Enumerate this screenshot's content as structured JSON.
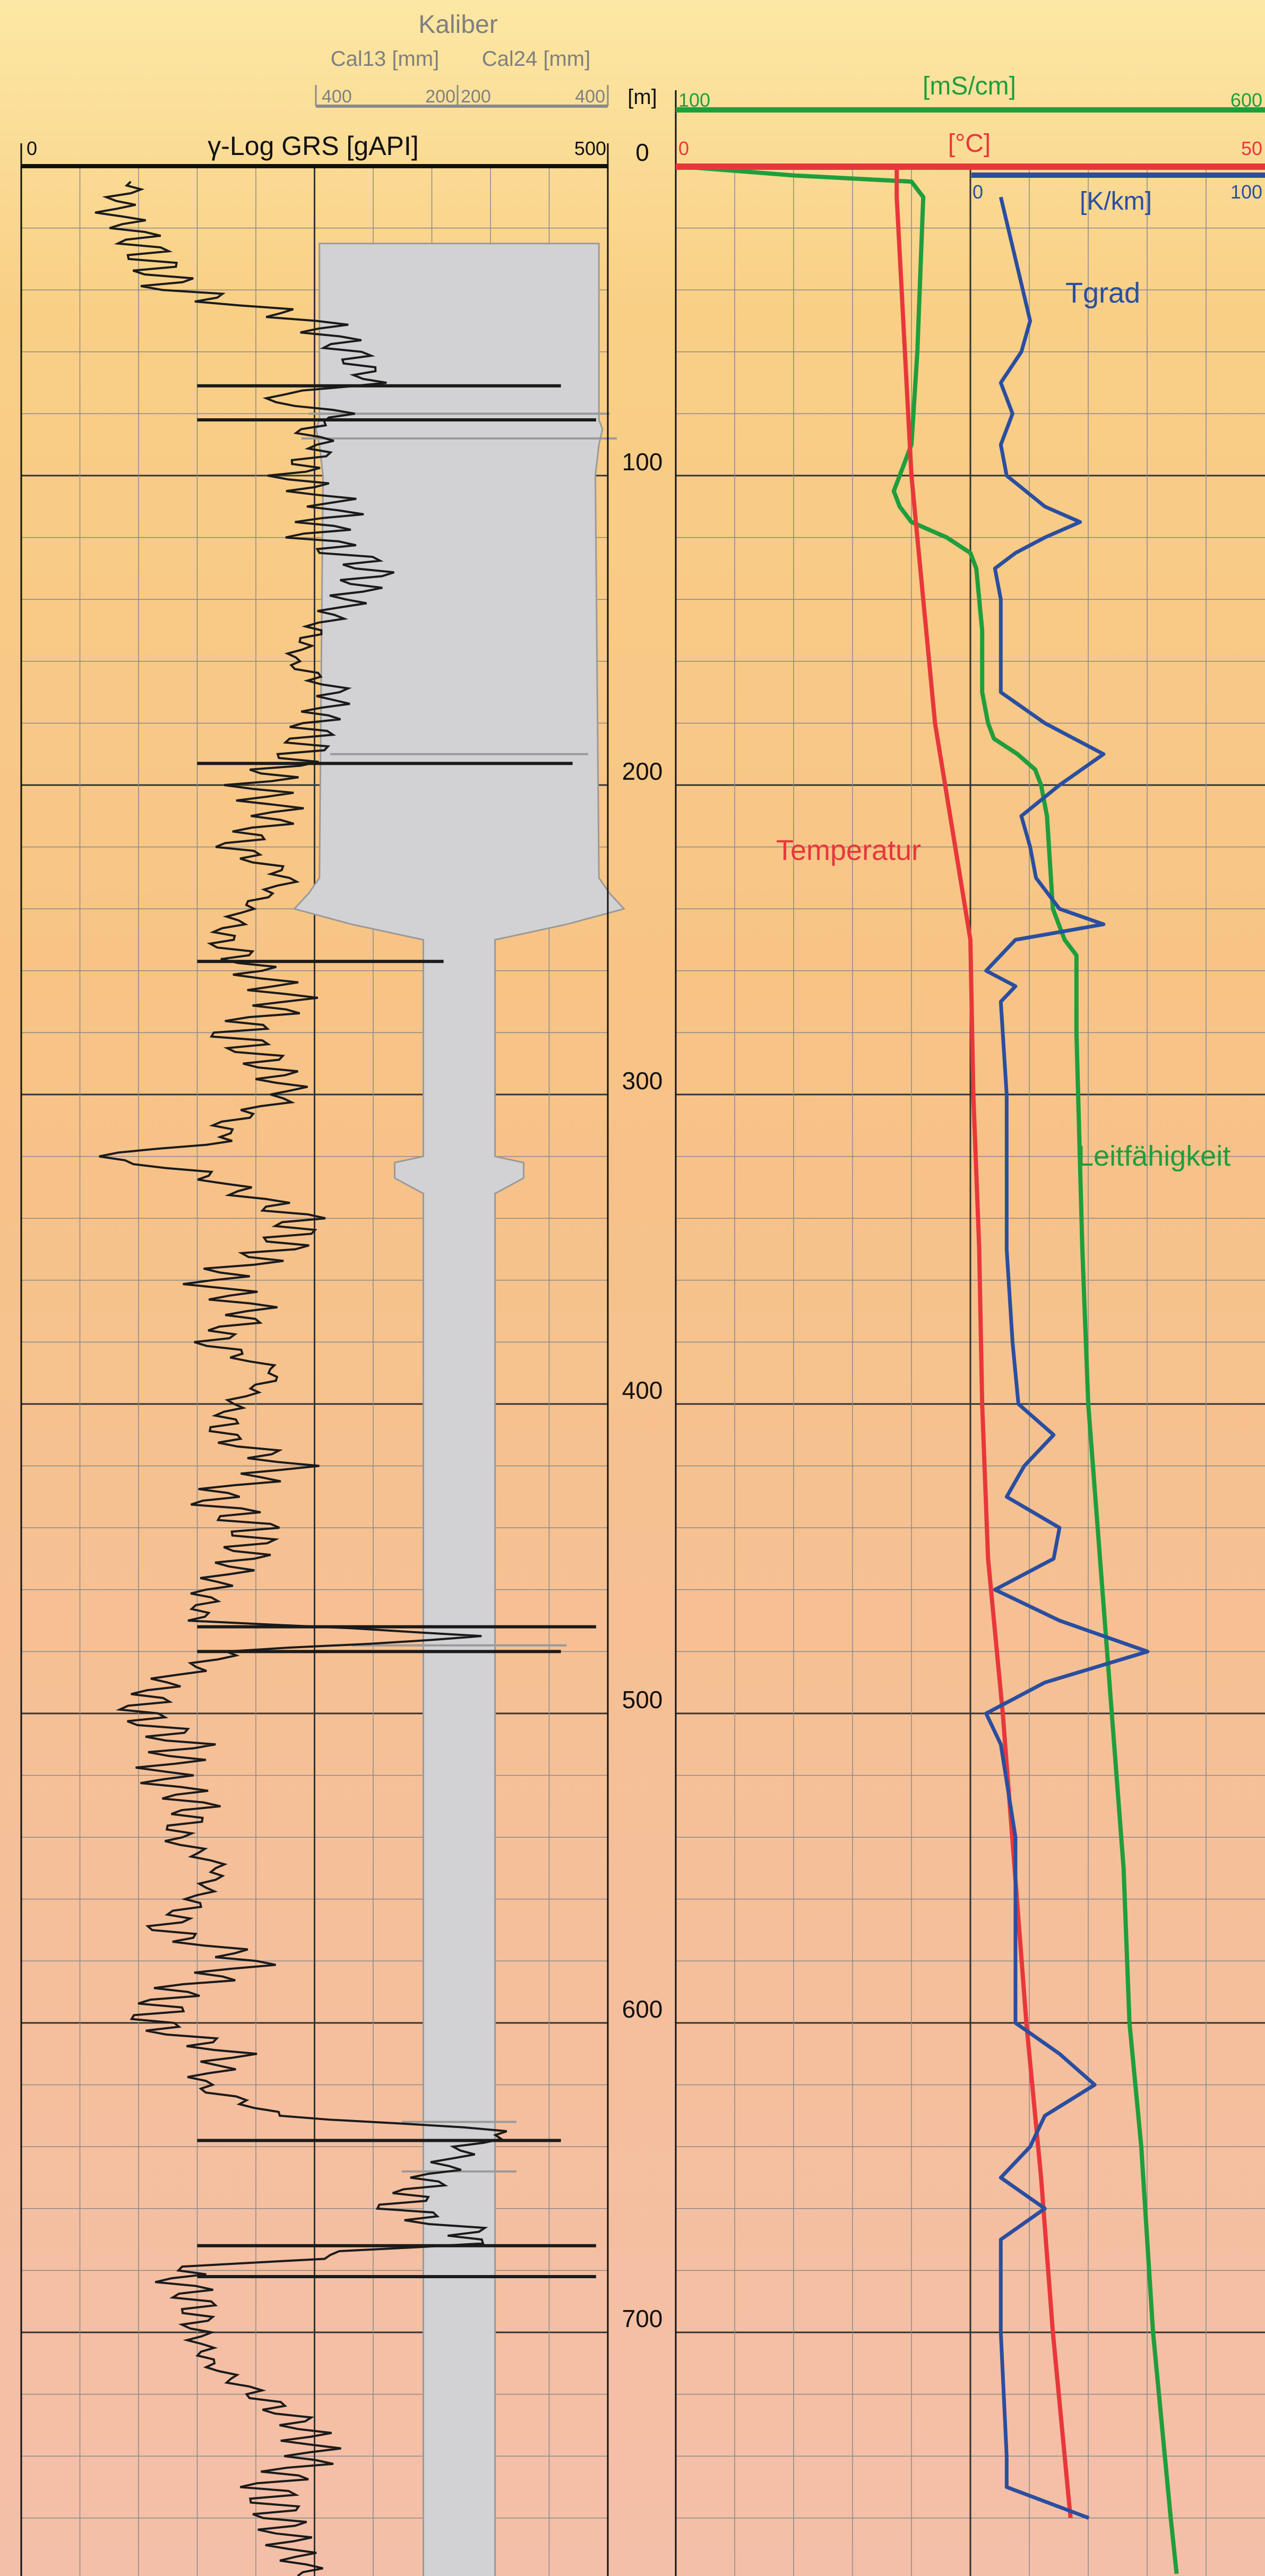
{
  "chart_data": {
    "type": "line",
    "depth_axis": {
      "label": "[m]",
      "range": [
        0,
        780
      ],
      "ticks": [
        "0",
        "100",
        "200",
        "300",
        "400",
        "500",
        "600",
        "700"
      ]
    },
    "gamma_track": {
      "title": "γ-Log GRS [gAPI]",
      "scale_min": "0",
      "scale_max": "500",
      "series": {
        "name": "γ-Log GRS",
        "depth": [
          5,
          10,
          15,
          20,
          30,
          40,
          50,
          60,
          70,
          75,
          80,
          85,
          90,
          100,
          110,
          120,
          130,
          140,
          150,
          160,
          170,
          180,
          190,
          200,
          210,
          220,
          230,
          240,
          250,
          260,
          270,
          280,
          290,
          300,
          310,
          315,
          320,
          325,
          330,
          340,
          350,
          360,
          370,
          380,
          390,
          400,
          410,
          420,
          430,
          440,
          450,
          460,
          470,
          475,
          480,
          490,
          500,
          510,
          520,
          530,
          540,
          550,
          560,
          570,
          580,
          590,
          600,
          610,
          620,
          630,
          635,
          640,
          650,
          660,
          670,
          680,
          690,
          700,
          710,
          720,
          730,
          740,
          750,
          760,
          770,
          780
        ],
        "values": [
          100,
          85,
          80,
          95,
          110,
          130,
          250,
          280,
          300,
          200,
          280,
          240,
          260,
          230,
          270,
          250,
          300,
          280,
          250,
          230,
          270,
          250,
          240,
          200,
          220,
          180,
          230,
          190,
          170,
          200,
          230,
          180,
          210,
          230,
          170,
          180,
          60,
          150,
          180,
          240,
          220,
          160,
          200,
          160,
          220,
          180,
          170,
          230,
          160,
          200,
          190,
          160,
          150,
          400,
          180,
          120,
          100,
          140,
          120,
          150,
          130,
          170,
          150,
          120,
          200,
          130,
          110,
          180,
          150,
          220,
          420,
          380,
          350,
          320,
          400,
          130,
          150,
          150,
          160,
          200,
          240,
          250,
          210,
          220,
          230,
          250
        ]
      },
      "spikes": [
        {
          "depth": 71,
          "value": 460
        },
        {
          "depth": 82,
          "value": 490
        },
        {
          "depth": 193,
          "value": 470
        },
        {
          "depth": 257,
          "value": 360
        },
        {
          "depth": 472,
          "value": 490
        },
        {
          "depth": 480,
          "value": 460
        },
        {
          "depth": 638,
          "value": 460
        },
        {
          "depth": 672,
          "value": 490
        },
        {
          "depth": 682,
          "value": 490
        }
      ]
    },
    "caliper_track": {
      "title": "Kaliber",
      "left_label": "Cal13 [mm]",
      "right_label": "Cal24 [mm]",
      "left_scale": [
        "400",
        "200"
      ],
      "right_scale": [
        "200",
        "400"
      ],
      "profile": {
        "depth": [
          25,
          82,
          85,
          90,
          100,
          230,
          235,
          240,
          245,
          250,
          320,
          322,
          327,
          332,
          335,
          780
        ],
        "diameter": [
          390,
          390,
          400,
          390,
          380,
          390,
          420,
          460,
          300,
          100,
          100,
          180,
          180,
          100,
          100,
          100
        ]
      },
      "spikes": [
        {
          "depth": 80,
          "diameter": 420
        },
        {
          "depth": 88,
          "diameter": 440
        },
        {
          "depth": 190,
          "diameter": 360
        },
        {
          "depth": 472,
          "diameter": 300
        },
        {
          "depth": 478,
          "diameter": 300
        },
        {
          "depth": 632,
          "diameter": 160
        },
        {
          "depth": 648,
          "diameter": 160
        }
      ]
    },
    "right_track": {
      "conductivity": {
        "unit": "[mS/cm]",
        "scale_min": "100",
        "scale_max": "600",
        "name": "Leitfähigkeit",
        "color": "#1f9e3c",
        "depth": [
          0,
          3,
          5,
          10,
          60,
          90,
          100,
          105,
          110,
          115,
          120,
          125,
          130,
          150,
          170,
          180,
          185,
          190,
          195,
          200,
          210,
          240,
          250,
          255,
          260,
          280,
          350,
          400,
          450,
          500,
          550,
          600,
          640,
          700,
          760,
          778
        ],
        "values": [
          100,
          200,
          300,
          310,
          305,
          300,
          290,
          285,
          290,
          300,
          330,
          350,
          355,
          360,
          360,
          365,
          370,
          390,
          405,
          410,
          415,
          420,
          430,
          440,
          440,
          440,
          445,
          450,
          460,
          470,
          480,
          485,
          495,
          505,
          520,
          525
        ]
      },
      "temperature": {
        "unit": "[°C]",
        "scale_min": "0",
        "scale_max": "50",
        "name": "Temperatur",
        "color": "#e8373b",
        "depth": [
          0,
          5,
          10,
          100,
          110,
          180,
          250,
          300,
          350,
          400,
          450,
          500,
          550,
          600,
          650,
          700,
          760
        ],
        "values": [
          37.5,
          37.5,
          37.5,
          40.0,
          40.5,
          44.0,
          50.0,
          50.5,
          51.5,
          52.0,
          53.0,
          55.5,
          57.5,
          59.5,
          62.0,
          64.0,
          67.0
        ]
      },
      "gradient": {
        "unit": "[K/km]",
        "scale_min": "0",
        "scale_max": "100",
        "name": "Tgrad",
        "color": "#2a4ea0",
        "depth": [
          10,
          30,
          50,
          60,
          70,
          80,
          90,
          100,
          110,
          115,
          120,
          125,
          130,
          140,
          150,
          170,
          180,
          190,
          200,
          210,
          220,
          230,
          240,
          245,
          250,
          260,
          265,
          270,
          300,
          350,
          380,
          400,
          410,
          420,
          430,
          440,
          450,
          460,
          470,
          480,
          490,
          500,
          510,
          540,
          560,
          600,
          610,
          620,
          630,
          640,
          650,
          660,
          670,
          680,
          700,
          740,
          750,
          760
        ],
        "values": [
          10,
          15,
          20,
          17,
          10,
          14,
          10,
          12,
          25,
          37,
          25,
          15,
          8,
          10,
          10,
          10,
          25,
          45,
          30,
          17,
          20,
          22,
          30,
          45,
          15,
          5,
          15,
          10,
          12,
          12,
          14,
          16,
          28,
          18,
          12,
          30,
          28,
          8,
          30,
          60,
          25,
          5,
          10,
          15,
          15,
          15,
          30,
          42,
          25,
          20,
          10,
          25,
          10,
          10,
          10,
          12,
          12,
          40
        ]
      },
      "labels": [
        "Tgrad",
        "Temperatur",
        "Leitfähigkeit"
      ]
    }
  }
}
